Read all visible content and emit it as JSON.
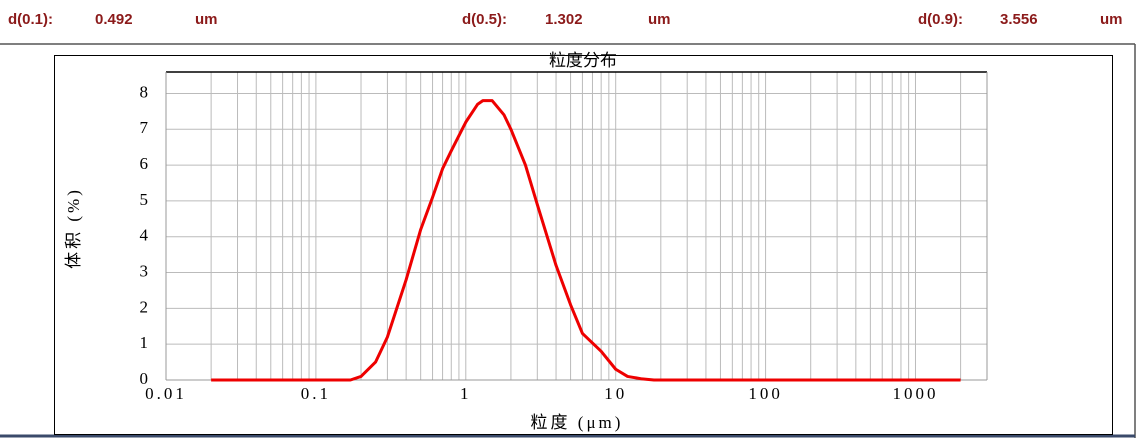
{
  "header": {
    "items": [
      {
        "label": "d(0.1):",
        "value": 0.492,
        "unit": "um"
      },
      {
        "label": "d(0.5):",
        "value": 1.302,
        "unit": "um"
      },
      {
        "label": "d(0.9):",
        "value": 3.556,
        "unit": "um"
      }
    ]
  },
  "chart_data": {
    "type": "line",
    "title": "粒度分布",
    "x_label": "粒度 (μm)",
    "y_label": "体积 (%)",
    "xscale": "log",
    "xlim": [
      0.01,
      3000
    ],
    "xticks": [
      0.01,
      0.1,
      1,
      10,
      100,
      1000
    ],
    "xminorticks": [
      0.02,
      0.03,
      0.04,
      0.05,
      0.06,
      0.07,
      0.08,
      0.09,
      0.2,
      0.3,
      0.4,
      0.5,
      0.6,
      0.7,
      0.8,
      0.9,
      2,
      3,
      4,
      5,
      6,
      7,
      8,
      9,
      20,
      30,
      40,
      50,
      60,
      70,
      80,
      90,
      200,
      300,
      400,
      500,
      600,
      700,
      800,
      900,
      2000
    ],
    "ylim": [
      0,
      8.6
    ],
    "yticks": [
      0,
      1,
      2,
      3,
      4,
      5,
      6,
      7,
      8
    ],
    "grid": true,
    "x": [
      0.02,
      0.1,
      0.17,
      0.2,
      0.25,
      0.3,
      0.4,
      0.5,
      0.6,
      0.7,
      0.8,
      1.0,
      1.2,
      1.3,
      1.5,
      1.8,
      2,
      2.5,
      3,
      4,
      5,
      6,
      8,
      10,
      12,
      15,
      18,
      100,
      2000
    ],
    "series": [
      {
        "name": "体积",
        "color": "#ee0000",
        "values": [
          0,
          0,
          0,
          0.1,
          0.5,
          1.2,
          2.8,
          4.2,
          5.1,
          5.9,
          6.4,
          7.2,
          7.7,
          7.8,
          7.8,
          7.4,
          7.0,
          6.0,
          4.9,
          3.2,
          2.1,
          1.3,
          0.8,
          0.3,
          0.1,
          0.03,
          0,
          0,
          0
        ]
      }
    ]
  }
}
